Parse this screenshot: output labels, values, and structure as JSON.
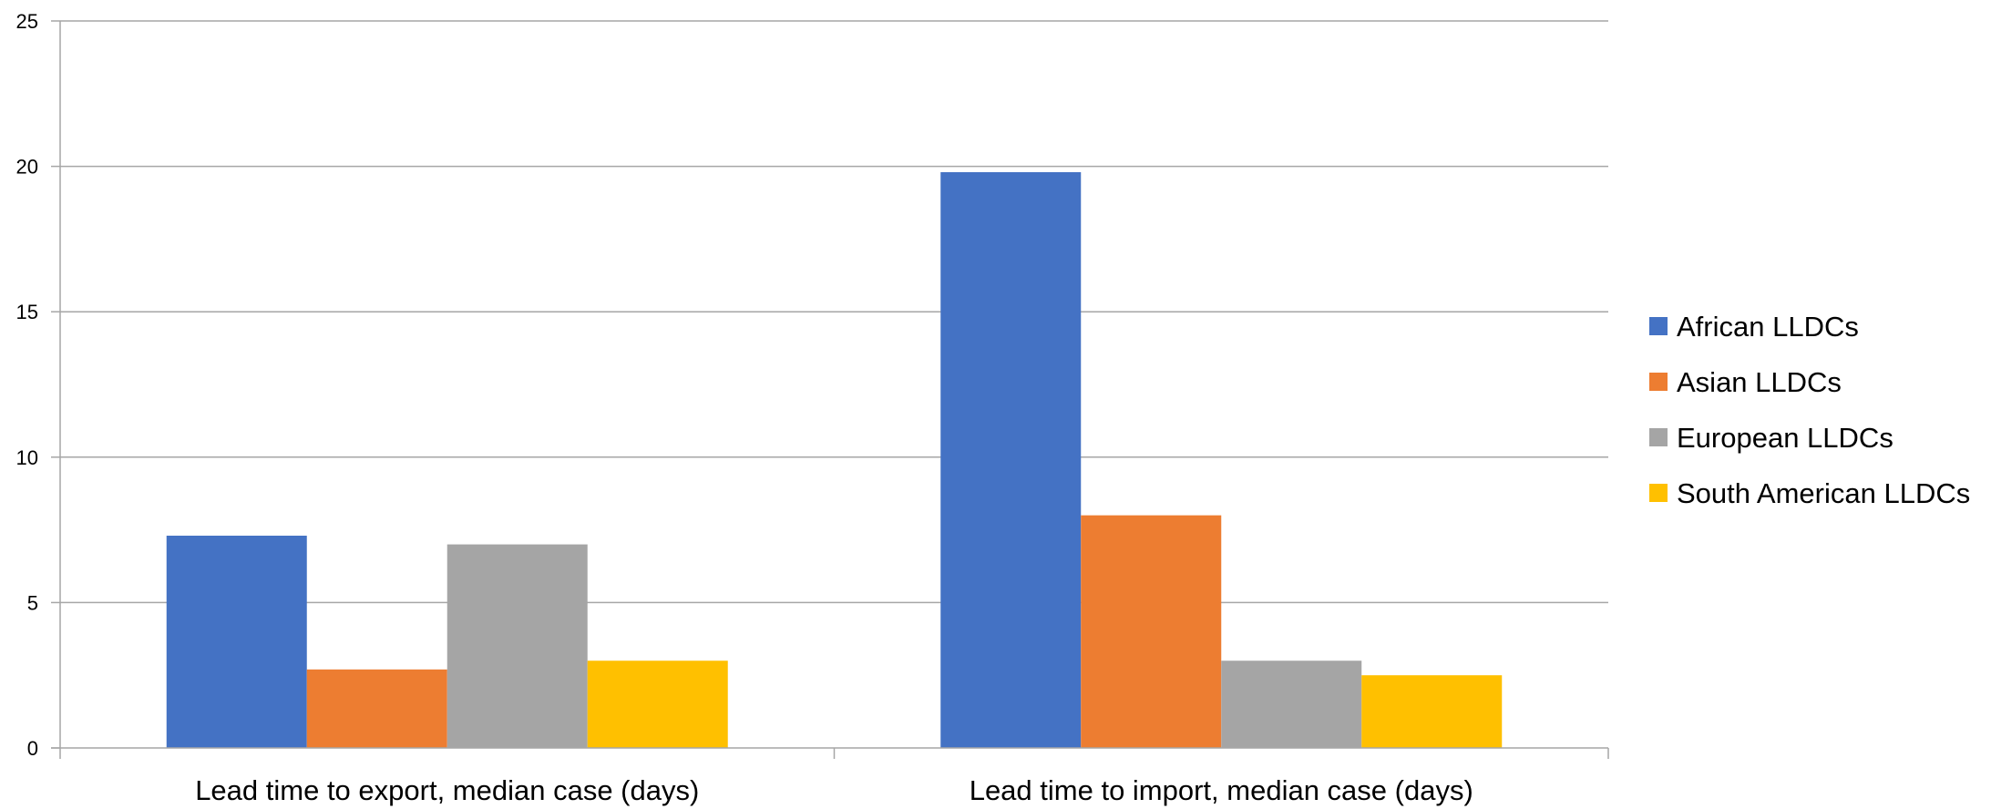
{
  "chart_data": {
    "type": "bar",
    "categories": [
      "Lead time to export, median case (days)",
      "Lead time to import, median case (days)"
    ],
    "series": [
      {
        "name": "African LLDCs",
        "values": [
          7.3,
          19.8
        ],
        "color": "#4472C4"
      },
      {
        "name": "Asian LLDCs",
        "values": [
          2.7,
          8.0
        ],
        "color": "#ED7D31"
      },
      {
        "name": "European LLDCs",
        "values": [
          7.0,
          3.0
        ],
        "color": "#A5A5A5"
      },
      {
        "name": "South American LLDCs",
        "values": [
          3.0,
          2.5
        ],
        "color": "#FFC000"
      }
    ],
    "ylim": [
      0,
      25
    ],
    "yticks": [
      0,
      5,
      10,
      15,
      20,
      25
    ],
    "grid": true,
    "legend_position": "right"
  }
}
